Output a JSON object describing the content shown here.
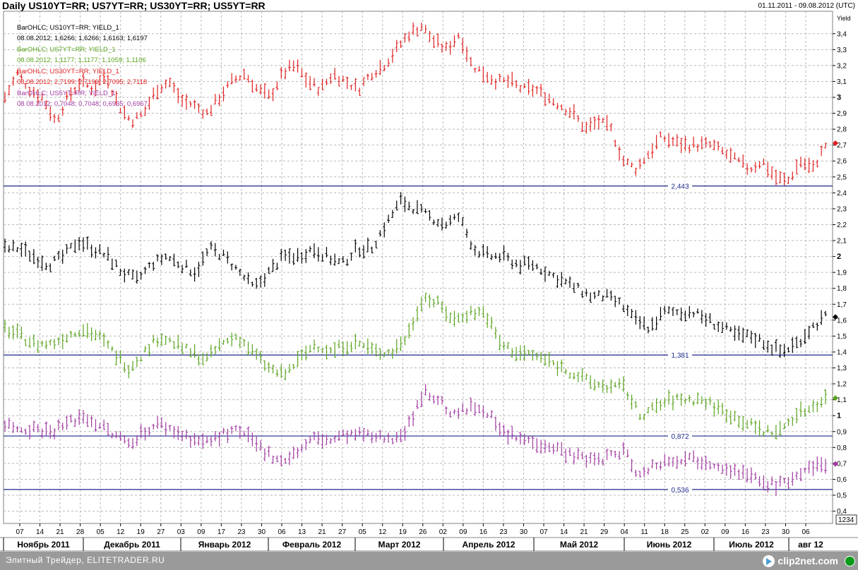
{
  "title": "Daily US10YT=RR; US7YT=RR; US30YT=RR; US5YT=RR",
  "date_range": "01.11.2011 - 09.08.2012 (UTC)",
  "footer": {
    "text": "Элитный Трейдер, ELITETRADER.RU",
    "logo_text": "clip2net.com",
    "logo_icon": "play-arrow-icon"
  },
  "colors": {
    "us10": "#000000",
    "us7": "#5aa41e",
    "us30": "#e02020",
    "us5": "#a03aa0",
    "level_line": "#1c2a8a",
    "grid": "#b8b8b8"
  },
  "legend": [
    {
      "label": "BarOHLC; US10YT=RR; YIELD_1",
      "values": "08.08.2012; 1,6266; 1,6266; 1,6163; 1,6197",
      "color": "#000000"
    },
    {
      "label": "BarOHLC; US7YT=RR; YIELD_1",
      "values": "08.08.2012; 1,1177; 1,1177; 1,1059; 1,1106",
      "color": "#5aa41e"
    },
    {
      "label": "BarOHLC; US30YT=RR; YIELD_1",
      "values": "08.08.2012; 2,7199; 2,7199; 2,7095; 2,7118",
      "color": "#e02020"
    },
    {
      "label": "BarOHLC; US5YT=RR; YIELD_1",
      "values": "08.08.2012; 0,7048; 0,7048; 0,6935; 0,6967",
      "color": "#a03aa0"
    }
  ],
  "chart_data": {
    "type": "ohlc",
    "title": "Daily US10YT=RR; US7YT=RR; US30YT=RR; US5YT=RR",
    "ylabel": "Yield",
    "ylim": [
      0.35,
      3.55
    ],
    "y_ticks": [
      "0,4",
      "0,5",
      "0,6",
      "0,7",
      "0,8",
      "0,9",
      "1",
      "1,1",
      "1,2",
      "1,3",
      "1,4",
      "1,5",
      "1,6",
      "1,7",
      "1,8",
      "1,9",
      "2",
      "2,1",
      "2,2",
      "2,3",
      "2,4",
      "2,5",
      "2,6",
      "2,7",
      "2,8",
      "2,9",
      "3",
      "3,1",
      "3,2",
      "3,3",
      "3,4"
    ],
    "x_day_ticks": [
      "07",
      "14",
      "21",
      "28",
      "05",
      "12",
      "19",
      "27",
      "03",
      "09",
      "17",
      "23",
      "30",
      "06",
      "13",
      "21",
      "27",
      "05",
      "12",
      "19",
      "26",
      "02",
      "09",
      "16",
      "23",
      "30",
      "07",
      "14",
      "21",
      "29",
      "04",
      "11",
      "18",
      "25",
      "02",
      "09",
      "16",
      "23",
      "30",
      "06"
    ],
    "months": [
      "Ноябрь 2011",
      "Декабрь 2011",
      "Январь 2012",
      "Февраль 2012",
      "Март 2012",
      "Апрель 2012",
      "Май 2012",
      "Июнь 2012",
      "Июль 2012",
      "авг 12"
    ],
    "volume_label": "1234",
    "grid": true,
    "legend_position": "top-left",
    "reference_lines": [
      {
        "label": "2,443",
        "value": 2.443
      },
      {
        "label": "1,381",
        "value": 1.381
      },
      {
        "label": "0,872",
        "value": 0.872
      },
      {
        "label": "0,536",
        "value": 0.536
      }
    ],
    "last_values": [
      {
        "series": "US30YT=RR",
        "value": 2.7118
      },
      {
        "series": "US10YT=RR",
        "value": 1.6197
      },
      {
        "series": "US7YT=RR",
        "value": 1.1106
      },
      {
        "series": "US5YT=RR",
        "value": 0.6967
      }
    ],
    "series_key": [
      "us30",
      "us10",
      "us7",
      "us5"
    ],
    "series_names": [
      "US30YT=RR",
      "US10YT=RR",
      "US7YT=RR",
      "US5YT=RR"
    ],
    "anchors": {
      "us30": [
        3.0,
        3.15,
        3.05,
        3.0,
        2.85,
        3.0,
        3.1,
        3.05,
        3.15,
        2.95,
        2.85,
        2.9,
        3.05,
        3.1,
        2.98,
        2.95,
        2.9,
        3.0,
        3.1,
        3.15,
        3.05,
        3.0,
        3.15,
        3.2,
        3.1,
        3.05,
        3.15,
        3.1,
        3.05,
        3.15,
        3.2,
        3.3,
        3.4,
        3.45,
        3.35,
        3.3,
        3.4,
        3.2,
        3.15,
        3.1,
        3.1,
        3.05,
        3.05,
        3.0,
        2.95,
        2.9,
        2.8,
        2.85,
        2.8,
        2.6,
        2.55,
        2.65,
        2.75,
        2.72,
        2.7,
        2.7,
        2.7,
        2.65,
        2.6,
        2.55,
        2.6,
        2.5,
        2.47,
        2.6,
        2.55,
        2.7
      ],
      "us10": [
        2.05,
        2.05,
        2.0,
        1.95,
        2.0,
        2.1,
        2.05,
        2.0,
        1.9,
        1.85,
        1.95,
        2.0,
        1.95,
        1.9,
        2.05,
        2.0,
        1.9,
        1.8,
        1.9,
        2.0,
        2.0,
        2.05,
        2.0,
        1.95,
        2.05,
        2.05,
        2.2,
        2.35,
        2.3,
        2.25,
        2.2,
        2.25,
        2.05,
        2.0,
        2.0,
        1.95,
        1.95,
        1.9,
        1.85,
        1.8,
        1.75,
        1.75,
        1.7,
        1.6,
        1.55,
        1.65,
        1.65,
        1.65,
        1.6,
        1.55,
        1.5,
        1.5,
        1.45,
        1.4,
        1.45,
        1.55,
        1.62
      ],
      "us7": [
        1.55,
        1.5,
        1.45,
        1.45,
        1.5,
        1.55,
        1.5,
        1.4,
        1.3,
        1.4,
        1.5,
        1.45,
        1.4,
        1.35,
        1.45,
        1.5,
        1.4,
        1.3,
        1.25,
        1.35,
        1.45,
        1.4,
        1.45,
        1.45,
        1.4,
        1.4,
        1.5,
        1.75,
        1.7,
        1.6,
        1.65,
        1.65,
        1.45,
        1.4,
        1.38,
        1.35,
        1.3,
        1.25,
        1.2,
        1.18,
        1.18,
        1.0,
        1.05,
        1.1,
        1.1,
        1.1,
        1.05,
        1.0,
        0.95,
        0.9,
        0.9,
        1.0,
        1.05,
        1.11
      ],
      "us5": [
        0.95,
        0.92,
        0.92,
        0.9,
        0.95,
        1.0,
        0.95,
        0.88,
        0.83,
        0.9,
        0.95,
        0.9,
        0.86,
        0.83,
        0.88,
        0.9,
        0.84,
        0.76,
        0.72,
        0.78,
        0.86,
        0.84,
        0.88,
        0.88,
        0.86,
        0.86,
        0.92,
        1.15,
        1.1,
        1.0,
        1.05,
        1.05,
        0.9,
        0.86,
        0.84,
        0.82,
        0.78,
        0.74,
        0.72,
        0.74,
        0.78,
        0.62,
        0.7,
        0.72,
        0.74,
        0.72,
        0.7,
        0.66,
        0.62,
        0.58,
        0.56,
        0.62,
        0.66,
        0.7
      ]
    }
  }
}
